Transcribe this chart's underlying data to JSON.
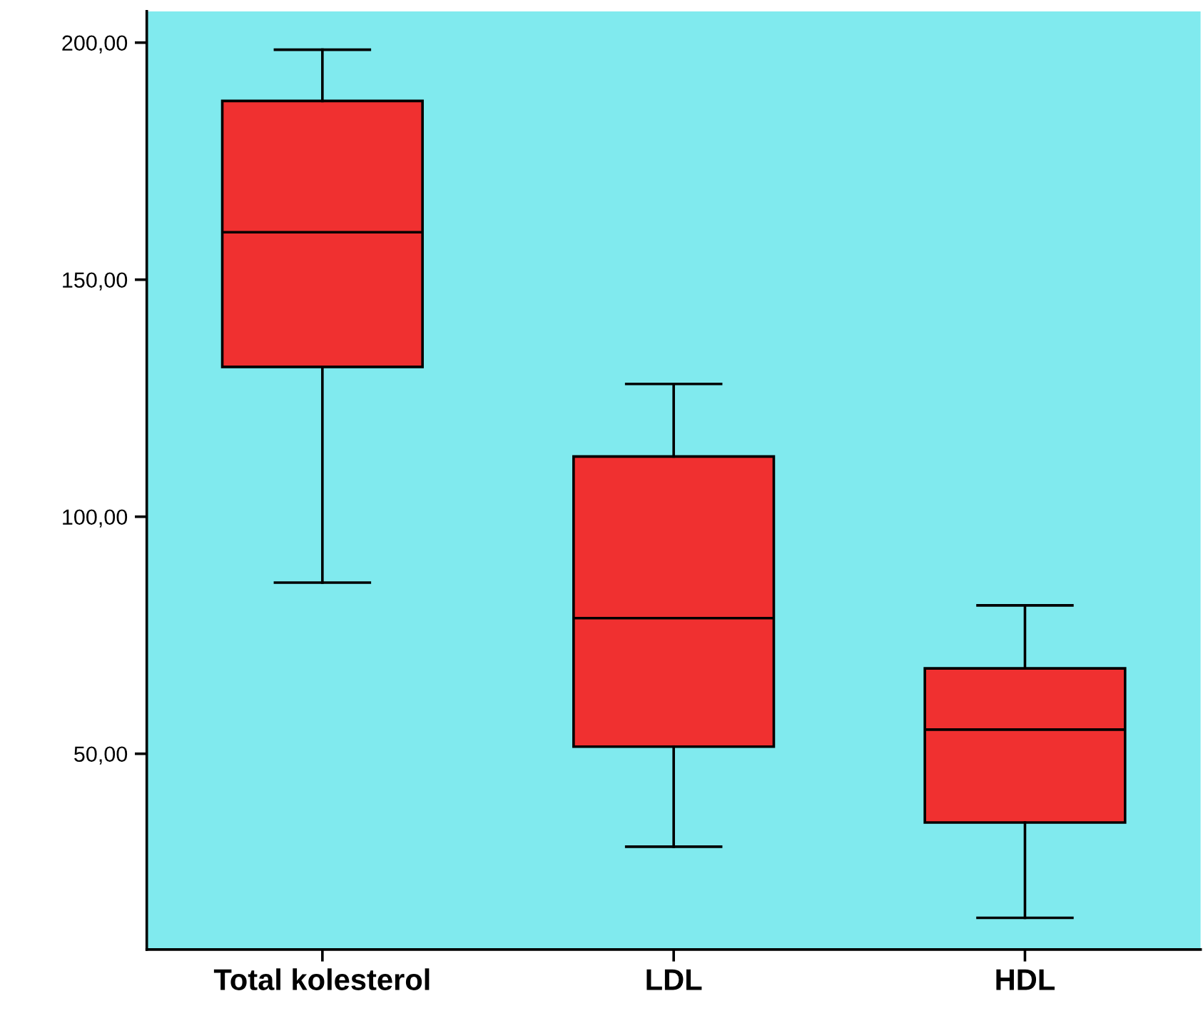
{
  "chart_data": {
    "type": "box",
    "categories": [
      "Total kolesterol",
      "LDL",
      "HDL"
    ],
    "boxes": [
      {
        "low": 86.1,
        "q1": 131.6,
        "median": 160,
        "q3": 187.7,
        "high": 198.5
      },
      {
        "low": 30.4,
        "q1": 51.5,
        "median": 78.6,
        "q3": 112.7,
        "high": 128
      },
      {
        "low": 15.4,
        "q1": 35.5,
        "median": 55.1,
        "q3": 68,
        "high": 81.3
      }
    ],
    "color": "#f03030",
    "ylim": [
      8.7,
      206.6
    ],
    "yticks": [
      {
        "value": 50,
        "label": "50,00"
      },
      {
        "value": 100,
        "label": "100,00"
      },
      {
        "value": 150,
        "label": "150,00"
      },
      {
        "value": 200,
        "label": "200,00"
      }
    ],
    "grid": false
  }
}
